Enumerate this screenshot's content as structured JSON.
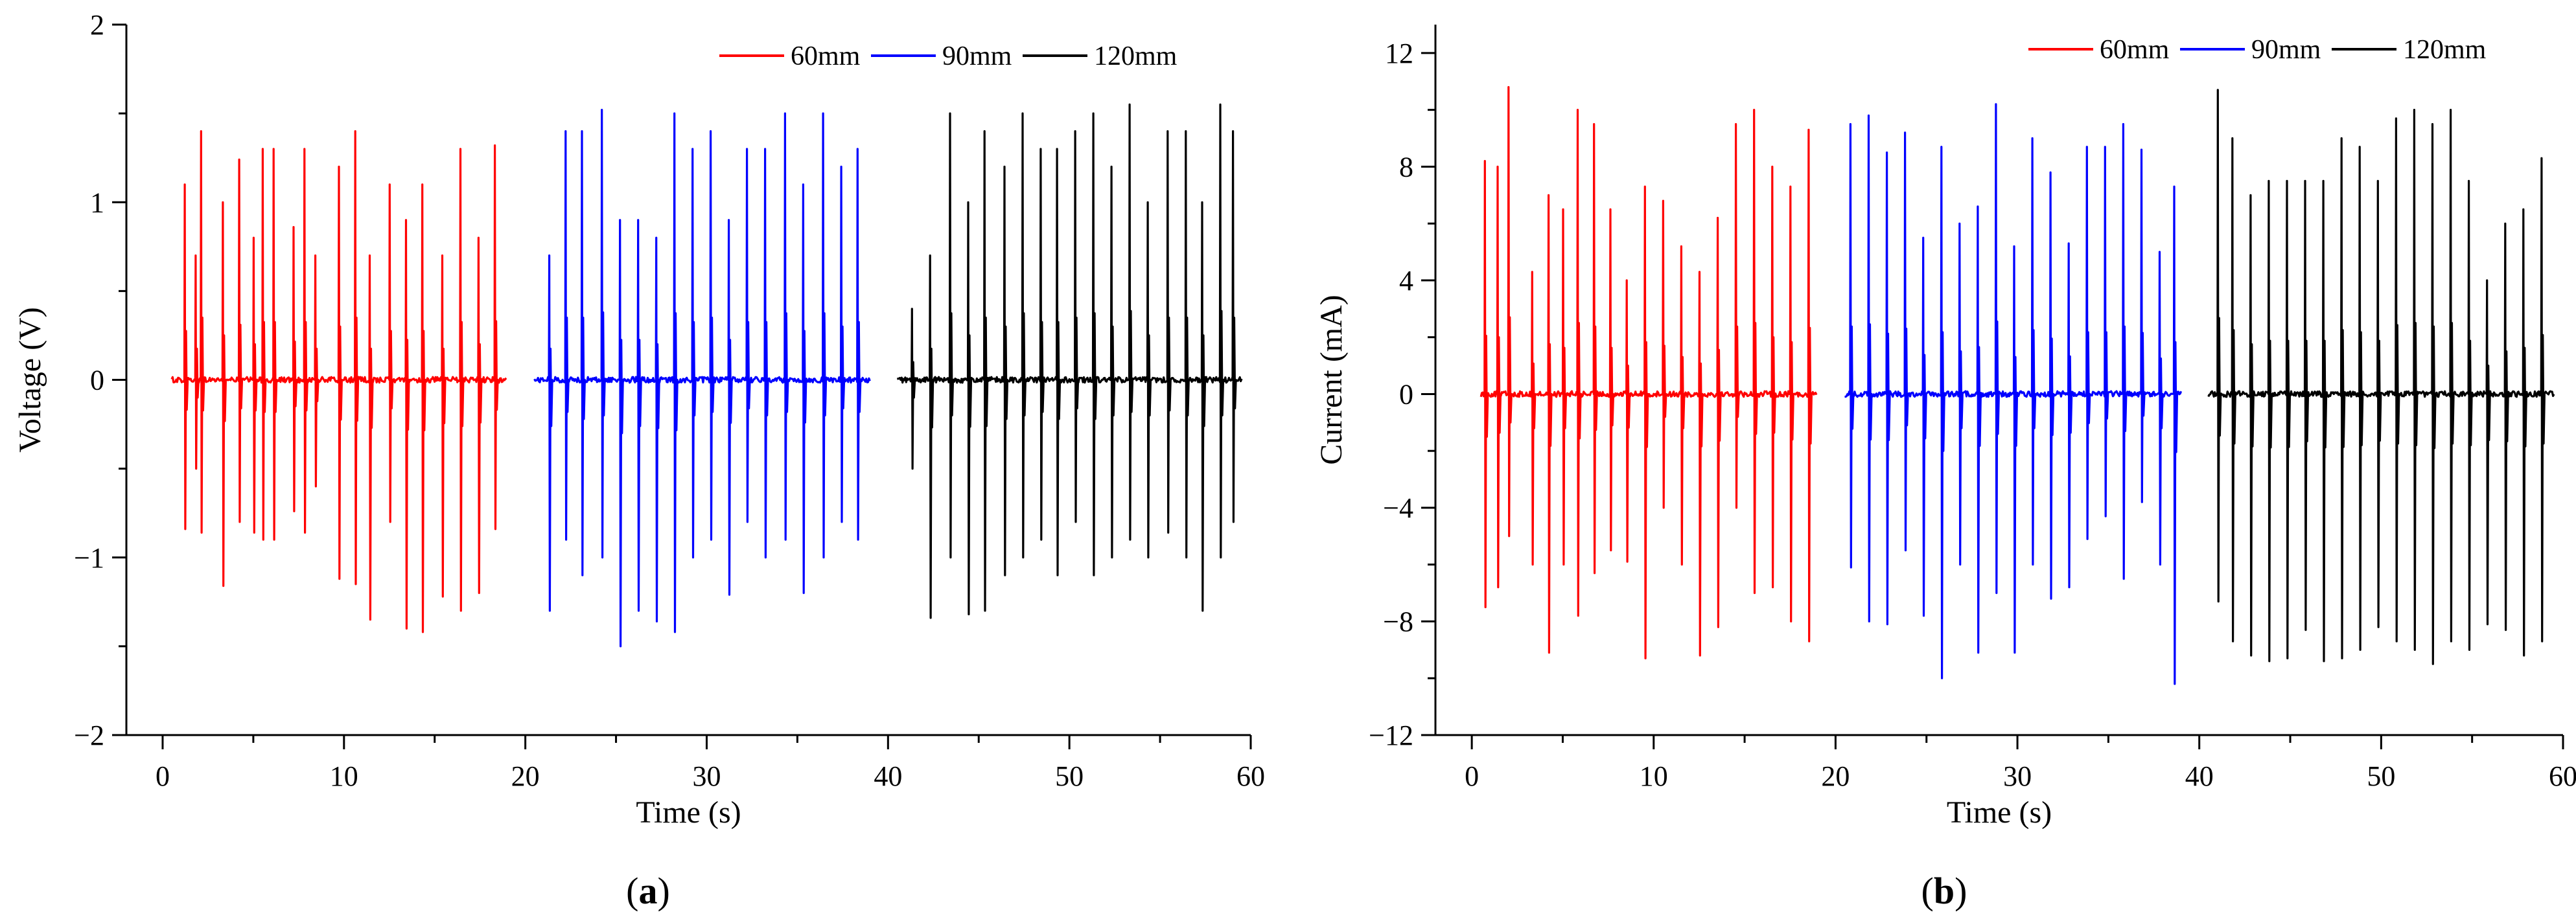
{
  "chart_data": [
    {
      "id": "a",
      "type": "line",
      "panel_label": {
        "open": "(",
        "letter": "a",
        "close": ")"
      },
      "title": "",
      "xlabel": "Time (s)",
      "ylabel": "Voltage (V)",
      "xlim": [
        -2,
        60
      ],
      "ylim": [
        -2,
        2
      ],
      "xticks": [
        0,
        10,
        20,
        30,
        40,
        50,
        60
      ],
      "xtick_labels": [
        "0",
        "10",
        "20",
        "30",
        "40",
        "50",
        "60"
      ],
      "yticks": [
        -2,
        -1,
        0,
        1,
        2
      ],
      "ytick_labels": [
        "−2",
        "−1",
        "0",
        "1",
        "2"
      ],
      "grid": false,
      "legend_position": "top-right",
      "series": [
        {
          "name": "60mm",
          "color": "#ff0000",
          "x_range": [
            0.5,
            19
          ],
          "pulses": [
            {
              "t": 1.2,
              "pos": 1.1,
              "neg": -0.84
            },
            {
              "t": 1.8,
              "pos": 0.7,
              "neg": -0.5
            },
            {
              "t": 2.1,
              "pos": 1.4,
              "neg": -0.86
            },
            {
              "t": 3.3,
              "pos": 1.0,
              "neg": -1.16
            },
            {
              "t": 4.2,
              "pos": 1.24,
              "neg": -0.8
            },
            {
              "t": 5.0,
              "pos": 0.8,
              "neg": -0.86
            },
            {
              "t": 5.5,
              "pos": 1.3,
              "neg": -0.9
            },
            {
              "t": 6.1,
              "pos": 1.3,
              "neg": -0.9
            },
            {
              "t": 7.2,
              "pos": 0.86,
              "neg": -0.74
            },
            {
              "t": 7.8,
              "pos": 1.3,
              "neg": -0.86
            },
            {
              "t": 8.4,
              "pos": 0.7,
              "neg": -0.6
            },
            {
              "t": 9.7,
              "pos": 1.2,
              "neg": -1.12
            },
            {
              "t": 10.6,
              "pos": 1.4,
              "neg": -1.15
            },
            {
              "t": 11.4,
              "pos": 0.7,
              "neg": -1.35
            },
            {
              "t": 12.5,
              "pos": 1.1,
              "neg": -0.8
            },
            {
              "t": 13.4,
              "pos": 0.9,
              "neg": -1.4
            },
            {
              "t": 14.3,
              "pos": 1.1,
              "neg": -1.42
            },
            {
              "t": 15.4,
              "pos": 0.7,
              "neg": -1.22
            },
            {
              "t": 16.4,
              "pos": 1.3,
              "neg": -1.3
            },
            {
              "t": 17.4,
              "pos": 0.8,
              "neg": -1.2
            },
            {
              "t": 18.3,
              "pos": 1.32,
              "neg": -0.84
            }
          ]
        },
        {
          "name": "90mm",
          "color": "#0000ff",
          "x_range": [
            20.5,
            39
          ],
          "pulses": [
            {
              "t": 21.3,
              "pos": 0.7,
              "neg": -1.3
            },
            {
              "t": 22.2,
              "pos": 1.4,
              "neg": -0.9
            },
            {
              "t": 23.1,
              "pos": 1.4,
              "neg": -1.1
            },
            {
              "t": 24.2,
              "pos": 1.52,
              "neg": -1.0
            },
            {
              "t": 25.2,
              "pos": 0.9,
              "neg": -1.5
            },
            {
              "t": 26.2,
              "pos": 0.9,
              "neg": -1.3
            },
            {
              "t": 27.2,
              "pos": 0.8,
              "neg": -1.36
            },
            {
              "t": 28.2,
              "pos": 1.5,
              "neg": -1.42
            },
            {
              "t": 29.2,
              "pos": 1.3,
              "neg": -1.0
            },
            {
              "t": 30.2,
              "pos": 1.4,
              "neg": -0.9
            },
            {
              "t": 31.2,
              "pos": 0.9,
              "neg": -1.21
            },
            {
              "t": 32.2,
              "pos": 1.3,
              "neg": -0.8
            },
            {
              "t": 33.2,
              "pos": 1.3,
              "neg": -1.0
            },
            {
              "t": 34.3,
              "pos": 1.5,
              "neg": -0.9
            },
            {
              "t": 35.3,
              "pos": 1.1,
              "neg": -1.2
            },
            {
              "t": 36.4,
              "pos": 1.5,
              "neg": -1.0
            },
            {
              "t": 37.4,
              "pos": 1.2,
              "neg": -0.8
            },
            {
              "t": 38.3,
              "pos": 1.3,
              "neg": -0.9
            }
          ]
        },
        {
          "name": "120mm",
          "color": "#000000",
          "x_range": [
            40.5,
            59.5
          ],
          "pulses": [
            {
              "t": 41.3,
              "pos": 0.4,
              "neg": -0.5
            },
            {
              "t": 42.3,
              "pos": 0.7,
              "neg": -1.34
            },
            {
              "t": 43.4,
              "pos": 1.5,
              "neg": -1.0
            },
            {
              "t": 44.4,
              "pos": 1.0,
              "neg": -1.32
            },
            {
              "t": 45.3,
              "pos": 1.4,
              "neg": -1.3
            },
            {
              "t": 46.4,
              "pos": 1.2,
              "neg": -1.1
            },
            {
              "t": 47.4,
              "pos": 1.5,
              "neg": -1.0
            },
            {
              "t": 48.4,
              "pos": 1.3,
              "neg": -0.9
            },
            {
              "t": 49.3,
              "pos": 1.3,
              "neg": -1.1
            },
            {
              "t": 50.3,
              "pos": 1.4,
              "neg": -0.8
            },
            {
              "t": 51.3,
              "pos": 1.5,
              "neg": -1.1
            },
            {
              "t": 52.3,
              "pos": 1.2,
              "neg": -1.0
            },
            {
              "t": 53.3,
              "pos": 1.55,
              "neg": -0.9
            },
            {
              "t": 54.3,
              "pos": 1.0,
              "neg": -1.0
            },
            {
              "t": 55.4,
              "pos": 1.4,
              "neg": -0.86
            },
            {
              "t": 56.4,
              "pos": 1.4,
              "neg": -1.0
            },
            {
              "t": 57.3,
              "pos": 1.0,
              "neg": -1.3
            },
            {
              "t": 58.3,
              "pos": 1.55,
              "neg": -1.0
            },
            {
              "t": 59.0,
              "pos": 1.4,
              "neg": -0.8
            }
          ]
        }
      ]
    },
    {
      "id": "b",
      "type": "line",
      "panel_label": {
        "open": "(",
        "letter": "b",
        "close": ")"
      },
      "title": "",
      "xlabel": "Time (s)",
      "ylabel": "Current (mA)",
      "xlim": [
        -2,
        60
      ],
      "ylim": [
        -12,
        13
      ],
      "xticks": [
        0,
        10,
        20,
        30,
        40,
        50,
        60
      ],
      "xtick_labels": [
        "0",
        "10",
        "20",
        "30",
        "40",
        "50",
        "60"
      ],
      "yticks": [
        -12,
        -8,
        -4,
        0,
        4,
        8,
        12
      ],
      "ytick_labels": [
        "−12",
        "−8",
        "−4",
        "0",
        "4",
        "8",
        "12"
      ],
      "grid": false,
      "legend_position": "top-right",
      "series": [
        {
          "name": "60mm",
          "color": "#ff0000",
          "x_range": [
            0.5,
            19
          ],
          "pulses": [
            {
              "t": 0.7,
              "pos": 8.2,
              "neg": -7.5
            },
            {
              "t": 1.4,
              "pos": 8.0,
              "neg": -6.8
            },
            {
              "t": 2.0,
              "pos": 10.8,
              "neg": -5.0
            },
            {
              "t": 3.3,
              "pos": 4.3,
              "neg": -6.0
            },
            {
              "t": 4.2,
              "pos": 7.0,
              "neg": -9.1
            },
            {
              "t": 5.0,
              "pos": 6.5,
              "neg": -6.0
            },
            {
              "t": 5.8,
              "pos": 10.0,
              "neg": -7.8
            },
            {
              "t": 6.7,
              "pos": 9.5,
              "neg": -6.3
            },
            {
              "t": 7.6,
              "pos": 6.5,
              "neg": -5.5
            },
            {
              "t": 8.5,
              "pos": 4.0,
              "neg": -5.9
            },
            {
              "t": 9.5,
              "pos": 7.3,
              "neg": -9.3
            },
            {
              "t": 10.5,
              "pos": 6.8,
              "neg": -4.0
            },
            {
              "t": 11.5,
              "pos": 5.2,
              "neg": -6.0
            },
            {
              "t": 12.5,
              "pos": 4.3,
              "neg": -9.2
            },
            {
              "t": 13.5,
              "pos": 6.2,
              "neg": -8.2
            },
            {
              "t": 14.5,
              "pos": 9.5,
              "neg": -4.0
            },
            {
              "t": 15.5,
              "pos": 10.0,
              "neg": -7.0
            },
            {
              "t": 16.5,
              "pos": 8.0,
              "neg": -6.8
            },
            {
              "t": 17.5,
              "pos": 7.3,
              "neg": -8.0
            },
            {
              "t": 18.5,
              "pos": 9.3,
              "neg": -8.7
            }
          ]
        },
        {
          "name": "90mm",
          "color": "#0000ff",
          "x_range": [
            20.5,
            39
          ],
          "pulses": [
            {
              "t": 20.8,
              "pos": 9.5,
              "neg": -6.1
            },
            {
              "t": 21.8,
              "pos": 9.8,
              "neg": -8.0
            },
            {
              "t": 22.8,
              "pos": 8.5,
              "neg": -8.1
            },
            {
              "t": 23.8,
              "pos": 9.2,
              "neg": -5.5
            },
            {
              "t": 24.8,
              "pos": 5.5,
              "neg": -7.8
            },
            {
              "t": 25.8,
              "pos": 8.7,
              "neg": -10.0
            },
            {
              "t": 26.8,
              "pos": 6.0,
              "neg": -6.0
            },
            {
              "t": 27.8,
              "pos": 6.6,
              "neg": -9.1
            },
            {
              "t": 28.8,
              "pos": 10.2,
              "neg": -7.0
            },
            {
              "t": 29.8,
              "pos": 5.2,
              "neg": -9.1
            },
            {
              "t": 30.8,
              "pos": 9.0,
              "neg": -6.0
            },
            {
              "t": 31.8,
              "pos": 7.8,
              "neg": -7.2
            },
            {
              "t": 32.8,
              "pos": 5.3,
              "neg": -6.8
            },
            {
              "t": 33.8,
              "pos": 8.7,
              "neg": -5.1
            },
            {
              "t": 34.8,
              "pos": 8.7,
              "neg": -4.3
            },
            {
              "t": 35.8,
              "pos": 9.5,
              "neg": -6.5
            },
            {
              "t": 36.8,
              "pos": 8.6,
              "neg": -3.8
            },
            {
              "t": 37.8,
              "pos": 5.0,
              "neg": -6.0
            },
            {
              "t": 38.6,
              "pos": 7.3,
              "neg": -10.2
            }
          ]
        },
        {
          "name": "120mm",
          "color": "#000000",
          "x_range": [
            40.5,
            59.5
          ],
          "pulses": [
            {
              "t": 41.0,
              "pos": 10.7,
              "neg": -7.3
            },
            {
              "t": 41.8,
              "pos": 9.0,
              "neg": -8.7
            },
            {
              "t": 42.8,
              "pos": 7.0,
              "neg": -9.2
            },
            {
              "t": 43.8,
              "pos": 7.5,
              "neg": -9.4
            },
            {
              "t": 44.8,
              "pos": 7.5,
              "neg": -9.3
            },
            {
              "t": 45.8,
              "pos": 7.5,
              "neg": -8.3
            },
            {
              "t": 46.8,
              "pos": 7.5,
              "neg": -9.4
            },
            {
              "t": 47.8,
              "pos": 9.0,
              "neg": -9.3
            },
            {
              "t": 48.8,
              "pos": 8.7,
              "neg": -9.0
            },
            {
              "t": 49.8,
              "pos": 7.5,
              "neg": -8.2
            },
            {
              "t": 50.8,
              "pos": 9.7,
              "neg": -8.7
            },
            {
              "t": 51.8,
              "pos": 10.0,
              "neg": -9.0
            },
            {
              "t": 52.8,
              "pos": 9.5,
              "neg": -9.5
            },
            {
              "t": 53.8,
              "pos": 10.0,
              "neg": -8.7
            },
            {
              "t": 54.8,
              "pos": 7.5,
              "neg": -9.0
            },
            {
              "t": 55.8,
              "pos": 4.0,
              "neg": -8.1
            },
            {
              "t": 56.8,
              "pos": 6.0,
              "neg": -8.3
            },
            {
              "t": 57.8,
              "pos": 6.5,
              "neg": -9.2
            },
            {
              "t": 58.8,
              "pos": 8.3,
              "neg": -8.7
            }
          ]
        }
      ]
    }
  ]
}
